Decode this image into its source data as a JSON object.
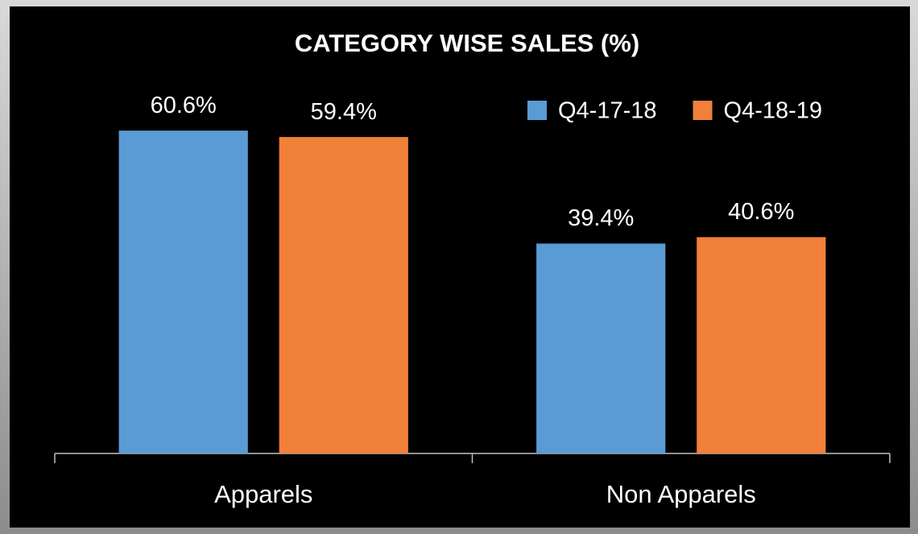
{
  "chart_data": {
    "type": "bar",
    "title": "CATEGORY WISE SALES (%)",
    "categories": [
      "Apparels",
      "Non Apparels"
    ],
    "series": [
      {
        "name": "Q4-17-18",
        "color": "#5b9bd5",
        "values": [
          60.6,
          39.4
        ],
        "value_labels": [
          "60.6%",
          "39.4%"
        ]
      },
      {
        "name": "Q4-18-19",
        "color": "#f0803a",
        "values": [
          59.4,
          40.6
        ],
        "value_labels": [
          "59.4%",
          "40.6%"
        ]
      }
    ],
    "ylim": [
      0,
      70
    ],
    "legend": "top-right"
  }
}
